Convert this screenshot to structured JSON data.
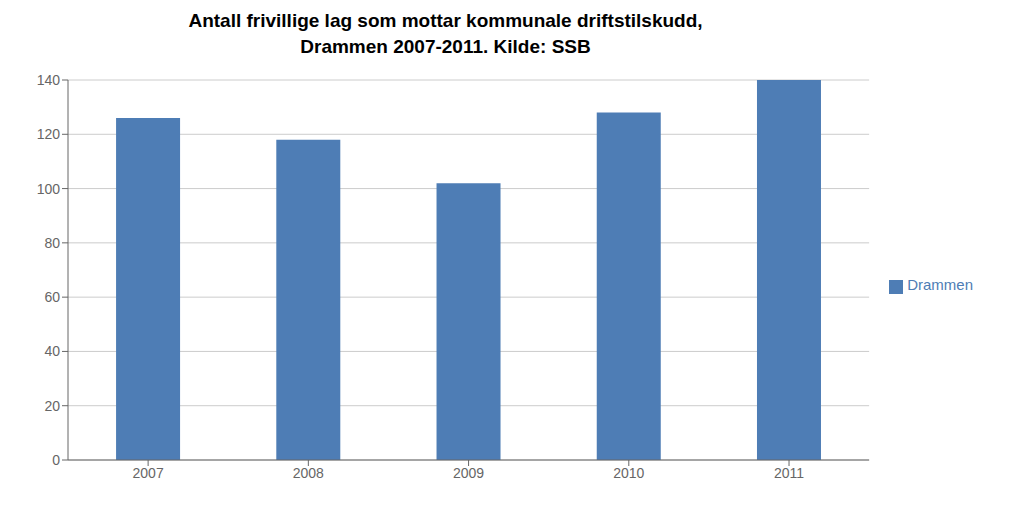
{
  "chart_data": {
    "type": "bar",
    "title": "Antall frivillige lag som mottar kommunale driftstilskudd,\nDrammen 2007-2011. Kilde: SSB",
    "categories": [
      "2007",
      "2008",
      "2009",
      "2010",
      "2011"
    ],
    "series": [
      {
        "name": "Drammen",
        "color": "#4e7db5",
        "values": [
          126,
          118,
          102,
          128,
          140
        ]
      }
    ],
    "ylim": [
      0,
      140
    ],
    "yticks": [
      0,
      20,
      40,
      60,
      80,
      100,
      120,
      140
    ],
    "grid": true,
    "legend": "right"
  }
}
